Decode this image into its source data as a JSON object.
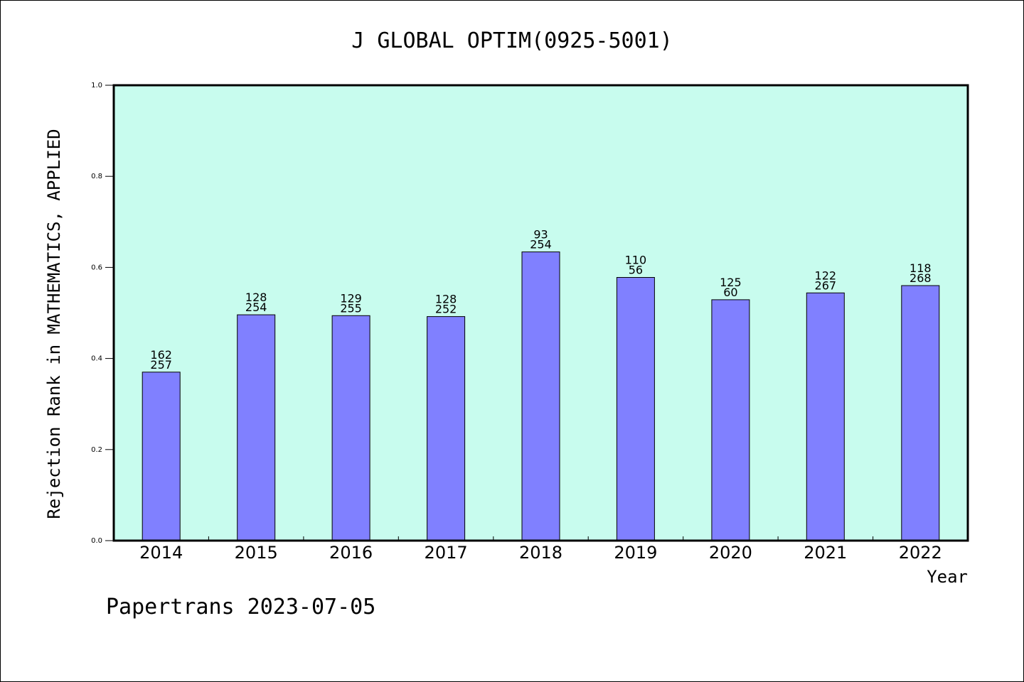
{
  "chart_data": {
    "type": "bar",
    "title": "J GLOBAL OPTIM(0925-5001)",
    "xlabel": "Year",
    "ylabel": "Rejection Rank in MATHEMATICS, APPLIED",
    "categories": [
      "2014",
      "2015",
      "2016",
      "2017",
      "2018",
      "2019",
      "2020",
      "2021",
      "2022"
    ],
    "values": [
      0.37,
      0.496,
      0.494,
      0.492,
      0.634,
      0.578,
      0.529,
      0.544,
      0.56
    ],
    "labels_top": [
      "162",
      "128",
      "129",
      "128",
      "93",
      "110",
      "125",
      "122",
      "118"
    ],
    "labels_bottom": [
      "257",
      "254",
      "255",
      "252",
      "254",
      "56",
      "60",
      "267",
      "268"
    ],
    "ylim": [
      0.0,
      1.0
    ],
    "yticks": [
      "0.0",
      "0.2",
      "0.4",
      "0.6",
      "0.8",
      "1.0"
    ],
    "grid": false,
    "legend": "none",
    "colors": {
      "plot_background": "#c8fcee",
      "bar_fill": "#8080ff",
      "bar_stroke": "#000000"
    }
  },
  "footer": {
    "text": "Papertrans 2023-07-05"
  }
}
